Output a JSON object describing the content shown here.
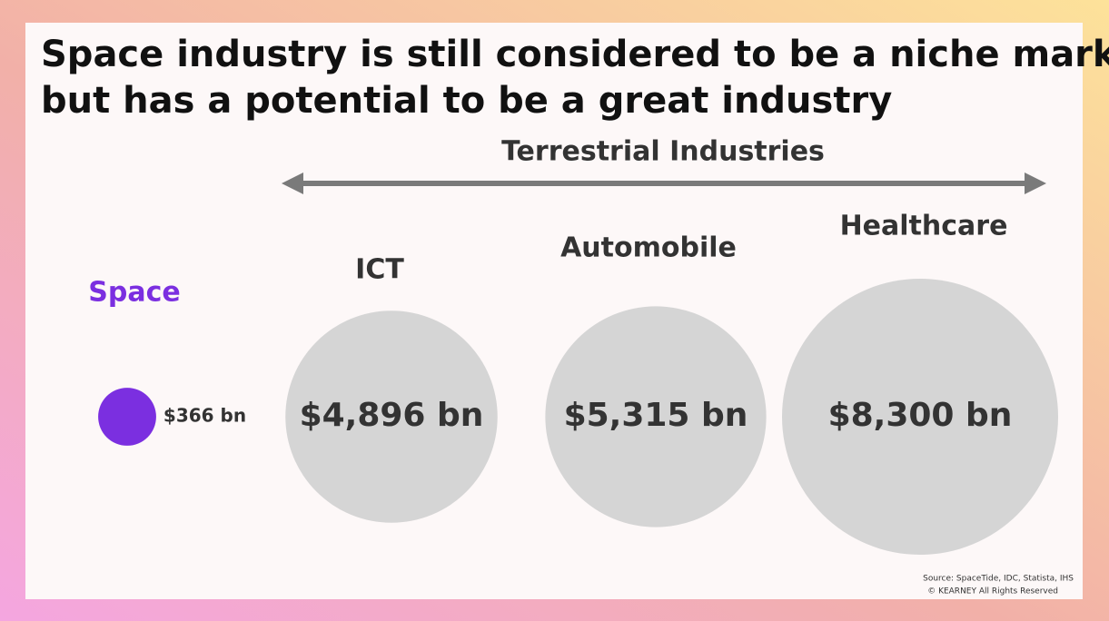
{
  "chart_data": {
    "type": "bubble",
    "title": [
      "Space industry is still considered to be a niche market",
      "but has a potential to be a great industry"
    ],
    "header": "Terrestrial Industries",
    "categories": [
      "Space",
      "ICT",
      "Automobile",
      "Healthcare"
    ],
    "values": [
      366,
      4896,
      5315,
      8300
    ],
    "value_labels": [
      "$366 bn",
      "$4,896 bn",
      "$5,315 bn",
      "$8,300 bn"
    ],
    "colors": [
      "#7b2fe0",
      "#d5d5d5",
      "#d5d5d5",
      "#d5d5d5"
    ],
    "label_colors": [
      "#7b2fe0",
      "#333333",
      "#333333",
      "#333333"
    ],
    "source": [
      "Source: SpaceTide, IDC, Statista, IHS",
      "© KEARNEY All Rights Reserved"
    ]
  }
}
